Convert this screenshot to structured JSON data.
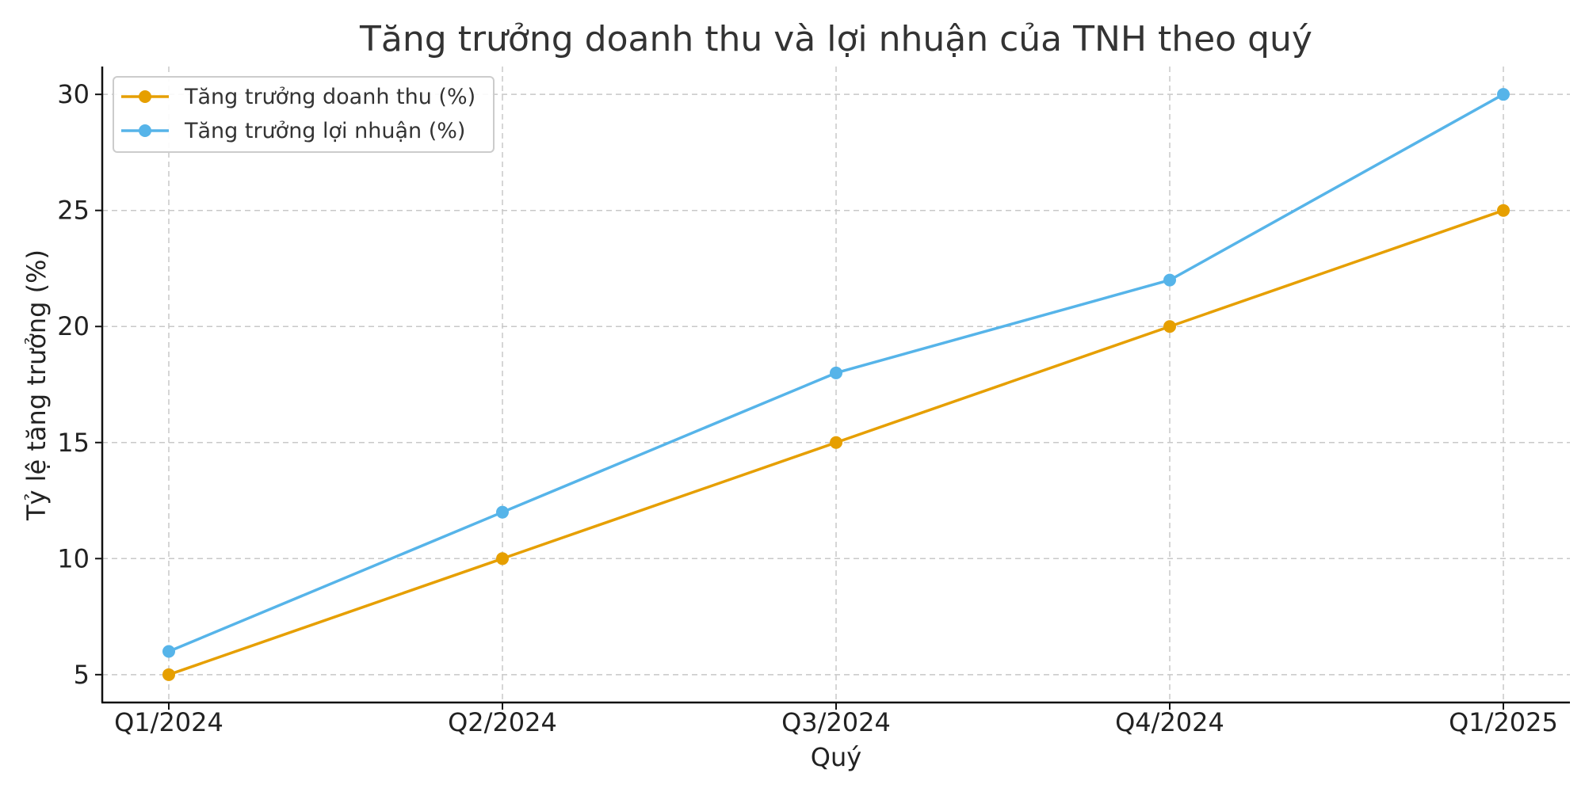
{
  "chart_data": {
    "type": "line",
    "title": "Tăng trưởng doanh thu và lợi nhuận của TNH theo quý",
    "xlabel": "Quý",
    "ylabel": "Tỷ lệ tăng trưởng (%)",
    "categories": [
      "Q1/2024",
      "Q2/2024",
      "Q3/2024",
      "Q4/2024",
      "Q1/2025"
    ],
    "ylim": [
      3.8,
      31.2
    ],
    "yticks": [
      5,
      10,
      15,
      20,
      25,
      30
    ],
    "grid": true,
    "legend_position": "top-left",
    "series": [
      {
        "name": "Tăng trưởng doanh thu (%)",
        "color": "#E69F00",
        "values": [
          5,
          10,
          15,
          20,
          25
        ]
      },
      {
        "name": "Tăng trưởng lợi nhuận (%)",
        "color": "#56B4E9",
        "values": [
          6,
          12,
          18,
          22,
          30
        ]
      }
    ]
  }
}
